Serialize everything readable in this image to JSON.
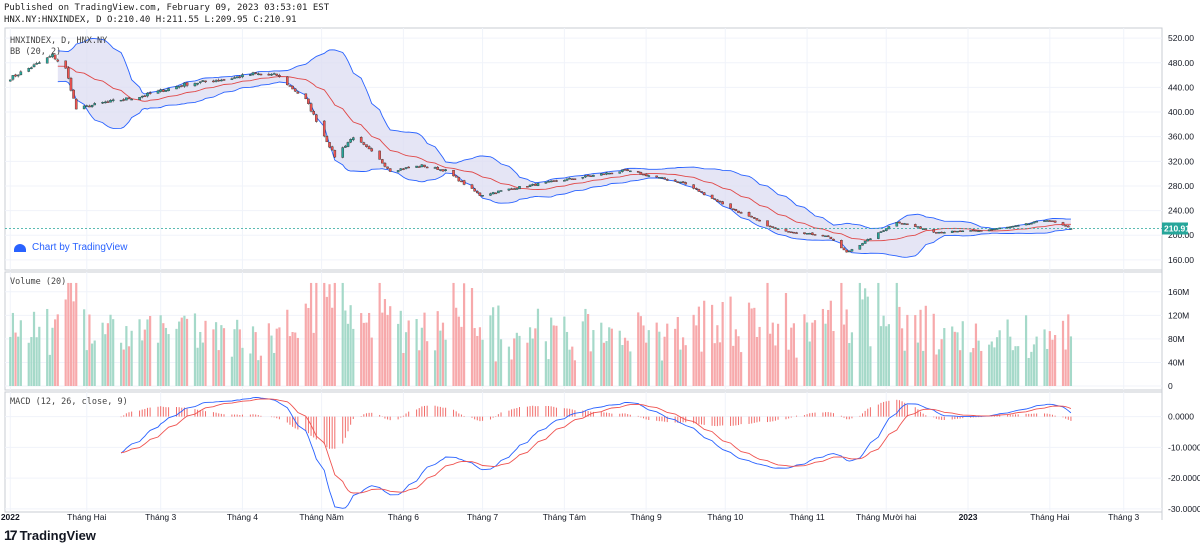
{
  "header": {
    "published": "Published on TradingView.com, February 09, 2023 03:53:01 EST",
    "ohlc": "HNX.NY:HNXINDEX, D O:210.40 H:211.55 L:209.95 C:210.91"
  },
  "branding": {
    "logo": "TradingView",
    "watermark": "Chart by TradingView"
  },
  "colors": {
    "up": "#26a69a",
    "down": "#ef5350",
    "volume_up": "#a5d9c9",
    "volume_down": "#f7a9ab",
    "bb_band": "#2962ff",
    "bb_fill": "#dcdcf2",
    "basis": "#e04848",
    "macd": "#2962ff",
    "signal": "#ef5350",
    "last_price": "#26a69a"
  },
  "chart_data": [
    {
      "type": "candlestick",
      "title": "HNXINDEX, D, HNX.NY",
      "indicator": "BB (20, 2)",
      "y_ticks": [
        "520.00",
        "480.00",
        "440.00",
        "400.00",
        "360.00",
        "320.00",
        "280.00",
        "240.00",
        "200.00",
        "160.00"
      ],
      "ylim": [
        150,
        530
      ],
      "last_price_label": "210.91",
      "x_ticks": [
        "2022",
        "Tháng Hai",
        "Tháng 3",
        "Tháng 4",
        "Tháng Năm",
        "Tháng 6",
        "Tháng 7",
        "Tháng Tám",
        "Tháng 9",
        "Tháng 10",
        "Tháng 11",
        "Tháng Mười hai",
        "2023",
        "Tháng Hai",
        "Tháng 3"
      ],
      "anchors": [
        {
          "x": "2022-01-03",
          "close": 455
        },
        {
          "x": "2022-01-14",
          "close": 480
        },
        {
          "x": "2022-01-19",
          "close": 492
        },
        {
          "x": "2022-01-24",
          "close": 470
        },
        {
          "x": "2022-01-28",
          "close": 405
        },
        {
          "x": "2022-02-07",
          "close": 415
        },
        {
          "x": "2022-02-21",
          "close": 425
        },
        {
          "x": "2022-03-10",
          "close": 445
        },
        {
          "x": "2022-03-28",
          "close": 455
        },
        {
          "x": "2022-04-05",
          "close": 462
        },
        {
          "x": "2022-04-14",
          "close": 460
        },
        {
          "x": "2022-04-25",
          "close": 420
        },
        {
          "x": "2022-05-06",
          "close": 328
        },
        {
          "x": "2022-05-13",
          "close": 360
        },
        {
          "x": "2022-05-20",
          "close": 335
        },
        {
          "x": "2022-05-27",
          "close": 305
        },
        {
          "x": "2022-06-08",
          "close": 313
        },
        {
          "x": "2022-06-17",
          "close": 305
        },
        {
          "x": "2022-06-30",
          "close": 265
        },
        {
          "x": "2022-07-15",
          "close": 278
        },
        {
          "x": "2022-08-01",
          "close": 290
        },
        {
          "x": "2022-08-24",
          "close": 305
        },
        {
          "x": "2022-09-15",
          "close": 285
        },
        {
          "x": "2022-10-05",
          "close": 240
        },
        {
          "x": "2022-10-20",
          "close": 210
        },
        {
          "x": "2022-11-09",
          "close": 198
        },
        {
          "x": "2022-11-16",
          "close": 172
        },
        {
          "x": "2022-11-25",
          "close": 195
        },
        {
          "x": "2022-12-05",
          "close": 222
        },
        {
          "x": "2022-12-20",
          "close": 205
        },
        {
          "x": "2023-01-05",
          "close": 207
        },
        {
          "x": "2023-01-20",
          "close": 215
        },
        {
          "x": "2023-01-31",
          "close": 225
        },
        {
          "x": "2023-02-09",
          "close": 210.91
        }
      ]
    },
    {
      "type": "bar",
      "title": "Volume (20)",
      "y_ticks": [
        "160M",
        "120M",
        "80M",
        "40M",
        "0"
      ],
      "ylim": [
        0,
        180
      ]
    },
    {
      "type": "line",
      "title": "MACD (12, 26, close, 9)",
      "y_ticks": [
        "0.0000",
        "-10.0000",
        "-20.0000",
        "-30.0000"
      ],
      "ylim": [
        -31,
        8
      ]
    }
  ]
}
